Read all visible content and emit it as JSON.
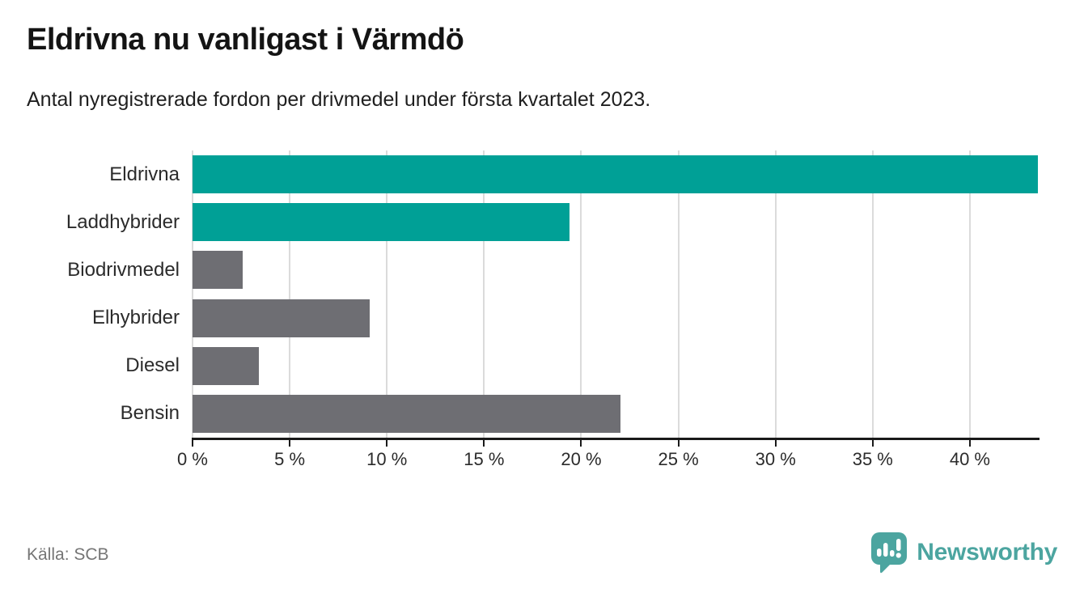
{
  "header": {
    "title": "Eldrivna nu vanligast i Värmdö",
    "subtitle": "Antal nyregistrerade fordon per drivmedel under första kvartalet 2023."
  },
  "footer": {
    "source": "Källa: SCB",
    "brand": "Newsworthy"
  },
  "colors": {
    "highlight_bar": "#00A096",
    "default_bar": "#6E6E73",
    "grid": "#DBDBDB",
    "axis": "#1A1A1A",
    "brand": "#4CA5A0"
  },
  "chart_data": {
    "type": "bar",
    "orientation": "horizontal",
    "title": "Eldrivna nu vanligast i Värmdö",
    "subtitle": "Antal nyregistrerade fordon per drivmedel under första kvartalet 2023.",
    "categories": [
      "Eldrivna",
      "Laddhybrider",
      "Biodrivmedel",
      "Elhybrider",
      "Diesel",
      "Bensin"
    ],
    "values": [
      43.5,
      19.4,
      2.6,
      9.1,
      3.4,
      22.0
    ],
    "unit": "%",
    "bar_colors": [
      "#00A096",
      "#00A096",
      "#6E6E73",
      "#6E6E73",
      "#6E6E73",
      "#6E6E73"
    ],
    "xlabel": "",
    "ylabel": "",
    "xlim": [
      0,
      43.5
    ],
    "x_ticks": [
      0,
      5,
      10,
      15,
      20,
      25,
      30,
      35,
      40
    ],
    "x_tick_labels": [
      "0 %",
      "5 %",
      "10 %",
      "15 %",
      "20 %",
      "25 %",
      "30 %",
      "35 %",
      "40 %"
    ],
    "grid": "vertical",
    "legend": "none"
  }
}
